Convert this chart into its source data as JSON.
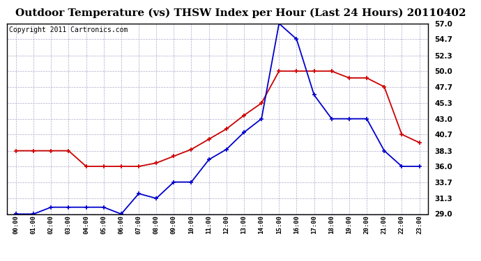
{
  "title": "Outdoor Temperature (vs) THSW Index per Hour (Last 24 Hours) 20110402",
  "copyright": "Copyright 2011 Cartronics.com",
  "hours": [
    "00:00",
    "01:00",
    "02:00",
    "03:00",
    "04:00",
    "05:00",
    "06:00",
    "07:00",
    "08:00",
    "09:00",
    "10:00",
    "11:00",
    "12:00",
    "13:00",
    "14:00",
    "15:00",
    "16:00",
    "17:00",
    "18:00",
    "19:00",
    "20:00",
    "21:00",
    "22:00",
    "23:00"
  ],
  "outdoor_temp": [
    38.3,
    38.3,
    38.3,
    38.3,
    36.0,
    36.0,
    36.0,
    36.0,
    36.5,
    37.5,
    38.5,
    40.0,
    41.5,
    43.5,
    45.3,
    50.0,
    50.0,
    50.0,
    50.0,
    49.0,
    49.0,
    47.7,
    40.7,
    39.5
  ],
  "thsw_index": [
    29.0,
    29.0,
    30.0,
    30.0,
    30.0,
    30.0,
    29.0,
    32.0,
    31.3,
    33.7,
    33.7,
    37.0,
    38.5,
    41.0,
    43.0,
    57.0,
    54.7,
    46.5,
    43.0,
    43.0,
    43.0,
    38.3,
    36.0,
    36.0
  ],
  "temp_color": "#cc0000",
  "thsw_color": "#0000cc",
  "bg_color": "#ffffff",
  "grid_color": "#aaaacc",
  "ylim_min": 29.0,
  "ylim_max": 57.0,
  "yticks": [
    29.0,
    31.3,
    33.7,
    36.0,
    38.3,
    40.7,
    43.0,
    45.3,
    47.7,
    50.0,
    52.3,
    54.7,
    57.0
  ],
  "title_fontsize": 11,
  "copyright_fontsize": 7,
  "marker": "+",
  "marker_size": 5,
  "line_width": 1.3
}
